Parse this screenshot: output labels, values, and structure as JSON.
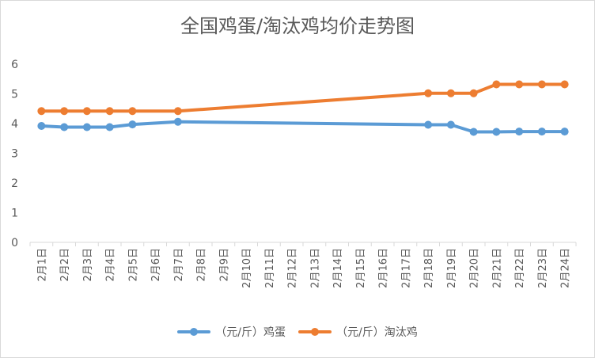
{
  "chart_data": {
    "type": "line",
    "title": "全国鸡蛋/淘汰鸡均价走势图",
    "categories": [
      "2月1日",
      "2月2日",
      "2月3日",
      "2月4日",
      "2月5日",
      "2月6日",
      "2月7日",
      "2月8日",
      "2月9日",
      "2月10日",
      "2月11日",
      "2月12日",
      "2月13日",
      "2月14日",
      "2月15日",
      "2月16日",
      "2月17日",
      "2月18日",
      "2月19日",
      "2月20日",
      "2月21日",
      "2月22日",
      "2月23日",
      "2月24日"
    ],
    "ylim": [
      0,
      6
    ],
    "yticks": [
      0,
      1,
      2,
      3,
      4,
      5,
      6
    ],
    "grid": false,
    "legend_position": "bottom",
    "series": [
      {
        "name": "（元/斤）鸡蛋",
        "color": "#5B9BD5",
        "values": [
          3.92,
          3.88,
          3.88,
          3.88,
          3.97,
          null,
          4.06,
          null,
          null,
          null,
          null,
          null,
          null,
          null,
          null,
          null,
          null,
          3.96,
          3.96,
          3.72,
          3.72,
          3.73,
          3.73,
          3.73
        ]
      },
      {
        "name": "（元/斤）淘汰鸡",
        "color": "#ED7D31",
        "values": [
          4.42,
          4.42,
          4.42,
          4.42,
          4.42,
          null,
          4.42,
          null,
          null,
          null,
          null,
          null,
          null,
          null,
          null,
          null,
          null,
          5.02,
          5.02,
          5.02,
          5.32,
          5.32,
          5.32,
          5.32
        ]
      }
    ]
  }
}
